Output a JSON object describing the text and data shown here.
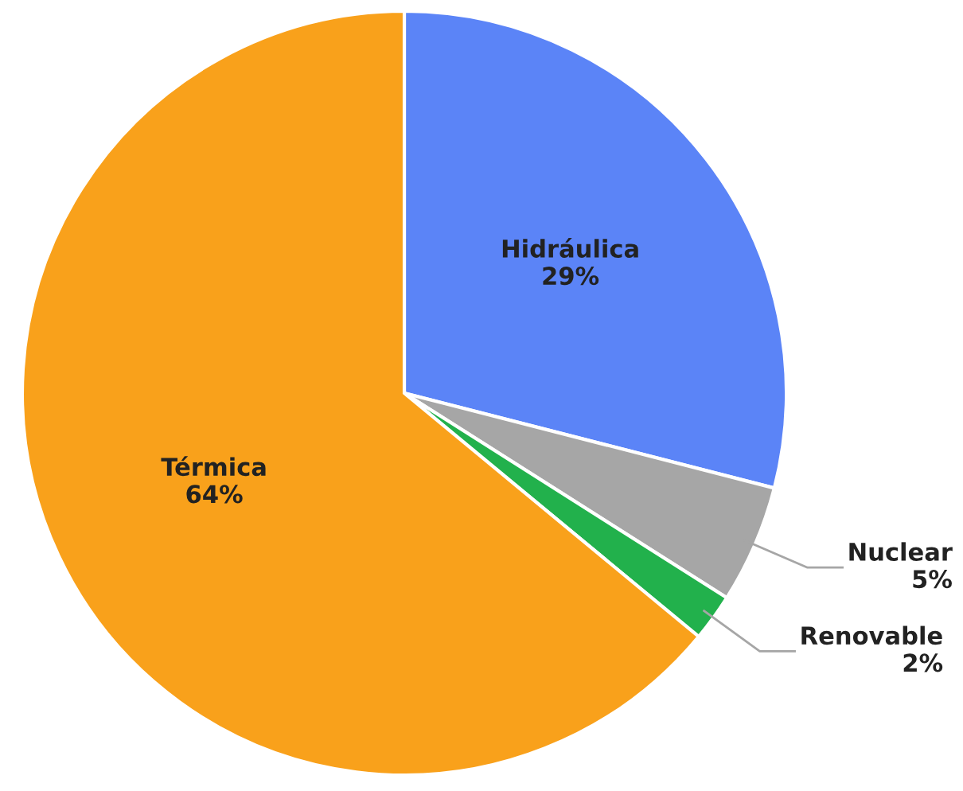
{
  "chart_data": {
    "type": "pie",
    "categories": [
      "Hidráulica",
      "Nuclear",
      "Renovable",
      "Térmica"
    ],
    "values": [
      29,
      5,
      2,
      64
    ],
    "colors": [
      "#5b84f7",
      "#a6a6a6",
      "#22b14c",
      "#f9a11b"
    ],
    "value_labels": [
      "29%",
      "5%",
      "2%",
      "64%"
    ]
  }
}
